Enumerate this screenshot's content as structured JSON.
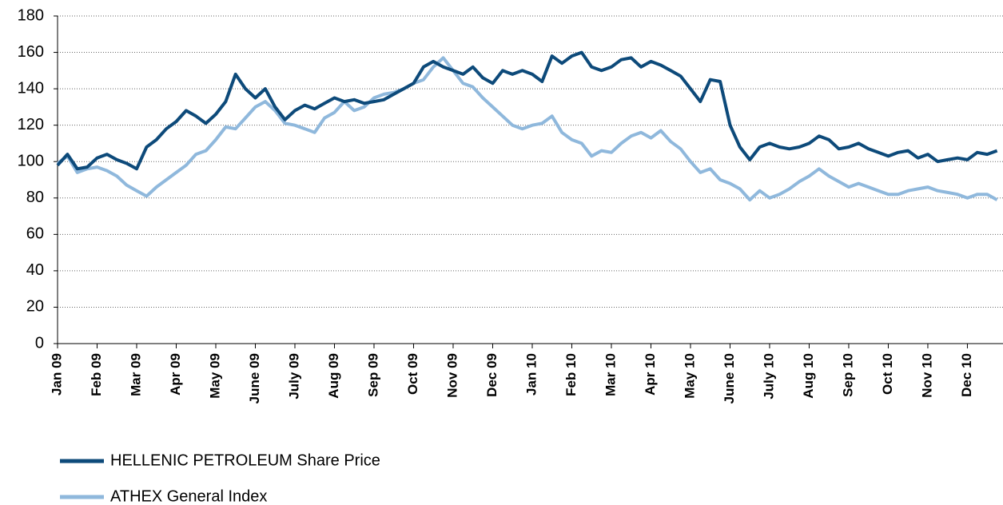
{
  "chart_data": {
    "type": "line",
    "x": [
      0,
      0.25,
      0.5,
      0.75,
      1,
      1.25,
      1.5,
      1.75,
      2,
      2.25,
      2.5,
      2.75,
      3,
      3.25,
      3.5,
      3.75,
      4,
      4.25,
      4.5,
      4.75,
      5,
      5.25,
      5.5,
      5.75,
      6,
      6.25,
      6.5,
      6.75,
      7,
      7.25,
      7.5,
      7.75,
      8,
      8.25,
      8.5,
      8.75,
      9,
      9.25,
      9.5,
      9.75,
      10,
      10.25,
      10.5,
      10.75,
      11,
      11.25,
      11.5,
      11.75,
      12,
      12.25,
      12.5,
      12.75,
      13,
      13.25,
      13.5,
      13.75,
      14,
      14.25,
      14.5,
      14.75,
      15,
      15.25,
      15.5,
      15.75,
      16,
      16.25,
      16.5,
      16.75,
      17,
      17.25,
      17.5,
      17.75,
      18,
      18.25,
      18.5,
      18.75,
      19,
      19.25,
      19.5,
      19.75,
      20,
      20.25,
      20.5,
      20.75,
      21,
      21.25,
      21.5,
      21.75,
      22,
      22.25,
      22.5,
      22.75,
      23,
      23.25,
      23.5,
      23.75
    ],
    "series": [
      {
        "name": "HELLENIC PETROLEUM Share Price",
        "color": "#0d4a7a",
        "values": [
          98,
          104,
          96,
          97,
          102,
          104,
          101,
          99,
          96,
          108,
          112,
          118,
          122,
          128,
          125,
          121,
          126,
          133,
          148,
          140,
          135,
          140,
          130,
          123,
          128,
          131,
          129,
          132,
          135,
          133,
          134,
          132,
          133,
          134,
          137,
          140,
          143,
          152,
          155,
          152,
          150,
          148,
          152,
          146,
          143,
          150,
          148,
          150,
          148,
          144,
          158,
          154,
          158,
          160,
          152,
          150,
          152,
          156,
          157,
          152,
          155,
          153,
          150,
          147,
          140,
          133,
          145,
          144,
          120,
          108,
          101,
          108,
          110,
          108,
          107,
          108,
          110,
          114,
          112,
          107,
          108,
          110,
          107,
          105,
          103,
          105,
          106,
          102,
          104,
          100,
          101,
          102,
          101,
          105,
          104,
          106
        ]
      },
      {
        "name": "ATHEX General Index",
        "color": "#8fb8dc",
        "values": [
          99,
          103,
          94,
          96,
          97,
          95,
          92,
          87,
          84,
          81,
          86,
          90,
          94,
          98,
          104,
          106,
          112,
          119,
          118,
          124,
          130,
          133,
          128,
          121,
          120,
          118,
          116,
          124,
          127,
          133,
          128,
          130,
          135,
          137,
          138,
          140,
          143,
          145,
          152,
          157,
          150,
          143,
          141,
          135,
          130,
          125,
          120,
          118,
          120,
          121,
          125,
          116,
          112,
          110,
          103,
          106,
          105,
          110,
          114,
          116,
          113,
          117,
          111,
          107,
          100,
          94,
          96,
          90,
          88,
          85,
          79,
          84,
          80,
          82,
          85,
          89,
          92,
          96,
          92,
          89,
          86,
          88,
          86,
          84,
          82,
          82,
          84,
          85,
          86,
          84,
          83,
          82,
          80,
          82,
          82,
          79
        ]
      }
    ],
    "xlim": [
      0,
      23.9
    ],
    "xticks": [
      {
        "value": 0,
        "label": "Jan 09"
      },
      {
        "value": 1,
        "label": "Feb 09"
      },
      {
        "value": 2,
        "label": "Mar 09"
      },
      {
        "value": 3,
        "label": "Apr 09"
      },
      {
        "value": 4,
        "label": "May 09"
      },
      {
        "value": 5,
        "label": "June 09"
      },
      {
        "value": 6,
        "label": "July 09"
      },
      {
        "value": 7,
        "label": "Aug 09"
      },
      {
        "value": 8,
        "label": "Sep 09"
      },
      {
        "value": 9,
        "label": "Oct 09"
      },
      {
        "value": 10,
        "label": "Nov 09"
      },
      {
        "value": 11,
        "label": "Dec 09"
      },
      {
        "value": 12,
        "label": "Jan 10"
      },
      {
        "value": 13,
        "label": "Feb 10"
      },
      {
        "value": 14,
        "label": "Mar 10"
      },
      {
        "value": 15,
        "label": "Apr 10"
      },
      {
        "value": 16,
        "label": "May 10"
      },
      {
        "value": 17,
        "label": "June 10"
      },
      {
        "value": 18,
        "label": "July 10"
      },
      {
        "value": 19,
        "label": "Aug 10"
      },
      {
        "value": 20,
        "label": "Sep 10"
      },
      {
        "value": 21,
        "label": "Oct 10"
      },
      {
        "value": 22,
        "label": "Nov 10"
      },
      {
        "value": 23,
        "label": "Dec 10"
      }
    ],
    "ylim": [
      0,
      180
    ],
    "yticks": [
      0,
      20,
      40,
      60,
      80,
      100,
      120,
      140,
      160,
      180
    ],
    "grid": true
  }
}
